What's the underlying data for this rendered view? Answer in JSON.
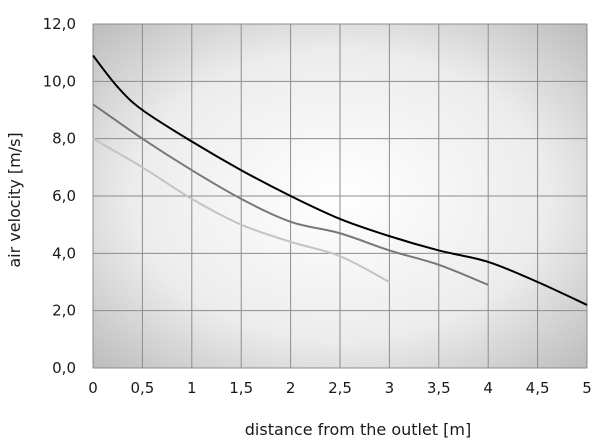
{
  "chart_data": {
    "type": "line",
    "xlabel": "distance from the outlet [m]",
    "ylabel": "air velocity  [m/s]",
    "xlim": [
      0,
      5
    ],
    "ylim": [
      0,
      12
    ],
    "x_ticks": [
      0,
      0.5,
      1,
      1.5,
      2,
      2.5,
      3,
      3.5,
      4,
      4.5,
      5
    ],
    "x_tick_labels": [
      "0",
      "0,5",
      "1",
      "1,5",
      "2",
      "2,5",
      "3",
      "3,5",
      "4",
      "4,5",
      "5"
    ],
    "y_ticks": [
      0,
      2,
      4,
      6,
      8,
      10,
      12
    ],
    "y_tick_labels": [
      "0,0",
      "2,0",
      "4,0",
      "6,0",
      "8,0",
      "10,0",
      "12,0"
    ],
    "grid": true,
    "series": [
      {
        "color": "#000000",
        "x": [
          0,
          0.25,
          0.5,
          1,
          1.5,
          2,
          2.5,
          3,
          3.5,
          4,
          4.5,
          5
        ],
        "y": [
          10.9,
          9.8,
          9.0,
          7.9,
          6.9,
          6.0,
          5.2,
          4.6,
          4.1,
          3.7,
          3.0,
          2.2
        ]
      },
      {
        "color": "#777777",
        "x": [
          0,
          0.5,
          1,
          1.5,
          2,
          2.5,
          3,
          3.5,
          4
        ],
        "y": [
          9.2,
          8.0,
          6.9,
          5.9,
          5.1,
          4.7,
          4.1,
          3.6,
          2.9
        ]
      },
      {
        "color": "#c4c4c4",
        "x": [
          0,
          0.5,
          1,
          1.5,
          2,
          2.5,
          3
        ],
        "y": [
          8.0,
          7.0,
          5.9,
          5.0,
          4.4,
          3.9,
          3.0
        ]
      }
    ]
  }
}
